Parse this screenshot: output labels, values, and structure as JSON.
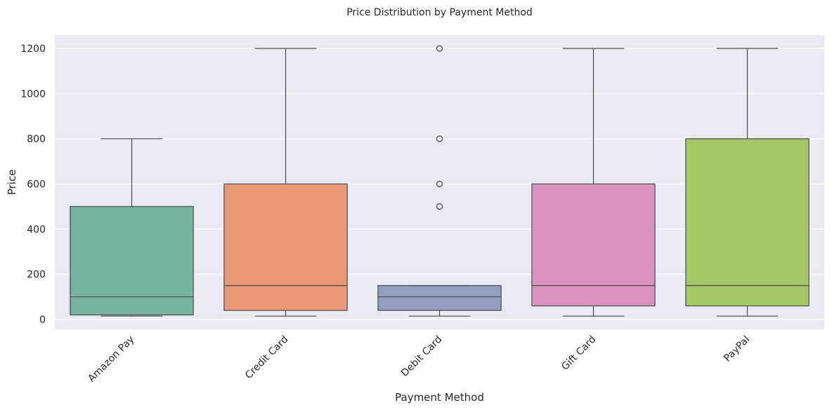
{
  "chart_data": {
    "type": "box",
    "title": "Price Distribution by Payment Method",
    "xlabel": "Payment Method",
    "ylabel": "Price",
    "ylim": [
      -45,
      1260
    ],
    "yticks": [
      0,
      200,
      400,
      600,
      800,
      1000,
      1200
    ],
    "grid": true,
    "background": "#EAEAF2",
    "categories": [
      "Amazon Pay",
      "Credit Card",
      "Debit Card",
      "Gift Card",
      "PayPal"
    ],
    "colors": [
      "#73B3A0",
      "#E99775",
      "#929DC0",
      "#DA93BF",
      "#A3C865"
    ],
    "boxes": [
      {
        "category": "Amazon Pay",
        "whisker_low": 15,
        "q1": 20,
        "median": 100,
        "q3": 500,
        "whisker_high": 800,
        "outliers": []
      },
      {
        "category": "Credit Card",
        "whisker_low": 15,
        "q1": 40,
        "median": 150,
        "q3": 600,
        "whisker_high": 1200,
        "outliers": []
      },
      {
        "category": "Debit Card",
        "whisker_low": 15,
        "q1": 40,
        "median": 100,
        "q3": 150,
        "whisker_high": 150,
        "outliers": [
          500,
          600,
          800,
          1200
        ]
      },
      {
        "category": "Gift Card",
        "whisker_low": 15,
        "q1": 60,
        "median": 150,
        "q3": 600,
        "whisker_high": 1200,
        "outliers": []
      },
      {
        "category": "PayPal",
        "whisker_low": 15,
        "q1": 60,
        "median": 150,
        "q3": 800,
        "whisker_high": 1200,
        "outliers": []
      }
    ]
  }
}
